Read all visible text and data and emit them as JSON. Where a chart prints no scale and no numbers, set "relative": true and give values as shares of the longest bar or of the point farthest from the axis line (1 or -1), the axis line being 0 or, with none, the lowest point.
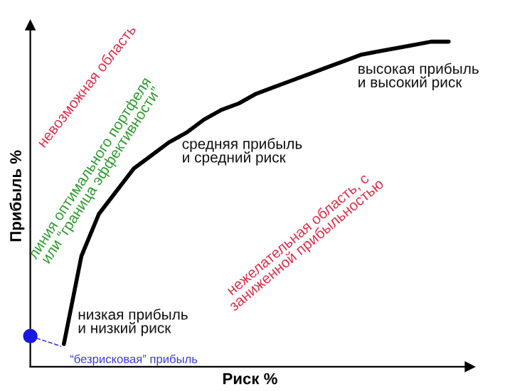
{
  "chart_data": {
    "type": "line",
    "relative": true,
    "xlabel": "Риск %",
    "ylabel": "Прибыль %",
    "series": [
      {
        "color": "#000000",
        "values": [
          0.07,
          0.34,
          0.47,
          0.54,
          0.61,
          0.65,
          0.69,
          0.72,
          0.76,
          0.79,
          0.81,
          0.84,
          0.86,
          0.88,
          0.9,
          0.92,
          0.94,
          0.96,
          0.97,
          0.98,
          0.99,
          1.0,
          1.0
        ]
      }
    ],
    "categories": [
      null,
      null,
      null,
      null,
      null,
      null,
      null,
      null,
      null,
      null,
      null,
      null,
      null,
      null,
      null,
      null,
      null,
      null,
      null,
      null,
      null,
      null,
      null
    ],
    "annotations": [
      "невозможная область",
      "линия оптимального портфеля\nили “граница эффективности”",
      "средняя прибыль\nи средний риск",
      "высокая прибыль\nи высокий риск",
      "низкая прибыль\nи низкий риск",
      "нежелательная область, с\nзаниженной прибыльностью",
      "“безрисковая” прибыль"
    ]
  }
}
